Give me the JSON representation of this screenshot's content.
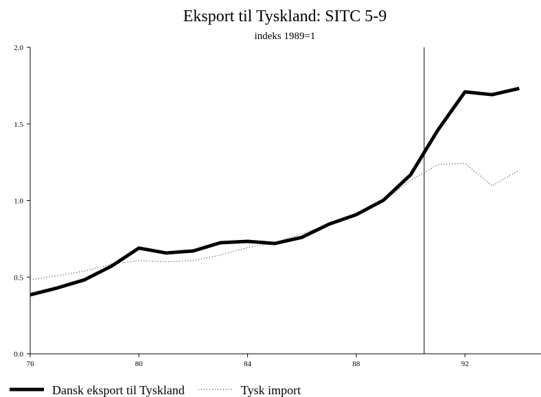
{
  "chart_data": {
    "type": "line",
    "title": "Eksport til Tyskland: SITC 5-9",
    "subtitle": "indeks 1989=1",
    "x": [
      76,
      77,
      78,
      79,
      80,
      81,
      82,
      83,
      84,
      85,
      86,
      87,
      88,
      89,
      90,
      91,
      92,
      93,
      94
    ],
    "series": [
      {
        "name": "Dansk eksport til Tyskland",
        "color": "#000000",
        "style": "solid",
        "values": [
          0.385,
          0.43,
          0.483,
          0.573,
          0.69,
          0.658,
          0.671,
          0.725,
          0.734,
          0.72,
          0.76,
          0.846,
          0.908,
          1.002,
          1.168,
          1.459,
          1.709,
          1.691,
          1.732
        ]
      },
      {
        "name": "Tysk import",
        "color": "#000000",
        "style": "dotted",
        "values": [
          0.483,
          0.51,
          0.54,
          0.586,
          0.608,
          0.6,
          0.608,
          0.644,
          0.693,
          0.725,
          0.783,
          0.846,
          0.908,
          0.998,
          1.132,
          1.235,
          1.244,
          1.096,
          1.199
        ]
      }
    ],
    "vline": 90.5,
    "xlim": [
      76,
      94.8
    ],
    "ylim": [
      0,
      2
    ],
    "xticks": [
      76,
      80,
      84,
      88,
      92
    ],
    "yticks": [
      {
        "value": 0,
        "label": "0.0"
      },
      {
        "value": 0.5,
        "label": "0.5"
      },
      {
        "value": 1,
        "label": "1.0"
      },
      {
        "value": 1.5,
        "label": "1.5"
      },
      {
        "value": 2,
        "label": "2.0"
      }
    ],
    "grid": false,
    "legend": "bottom-left"
  }
}
